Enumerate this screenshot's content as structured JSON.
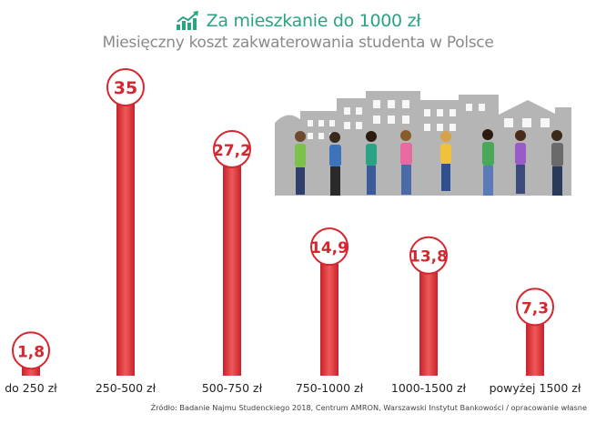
{
  "header": {
    "title": "Za mieszkanie do 1000 zł",
    "subtitle": "Miesięczny koszt zakwaterowania studenta w Polsce"
  },
  "chart_data": {
    "type": "bar",
    "title": "Za mieszkanie do 1000 zł",
    "subtitle": "Miesięczny koszt zakwaterowania studenta w Polsce",
    "categories": [
      "do 250 zł",
      "250-500 zł",
      "500-750 zł",
      "750-1000 zł",
      "1000-1500 zł",
      "powyżej 1500 zł"
    ],
    "values": [
      1.8,
      35,
      27.2,
      14.9,
      13.8,
      7.3
    ],
    "value_labels": [
      "1,8",
      "35",
      "27,2",
      "14,9",
      "13,8",
      "7,3"
    ],
    "ylim": [
      0,
      35
    ],
    "xlabel": "",
    "ylabel": "",
    "grid": false,
    "bar_color": "#d62630",
    "label_ring_color": "#d62630",
    "label_text_color": "#d62630"
  },
  "source": "Źródło: Badanie Najmu Studenckiego 2018, Centrum AMRON, Warszawski Instytut Bankowości / opracowanie własne",
  "colors": {
    "accent": "#2aa384",
    "subtitle": "#8a8a8a",
    "buildings": "#b3b3b3"
  },
  "icons": {
    "title_icon": "rising-chart-icon",
    "illustration": "students-city-illustration"
  }
}
